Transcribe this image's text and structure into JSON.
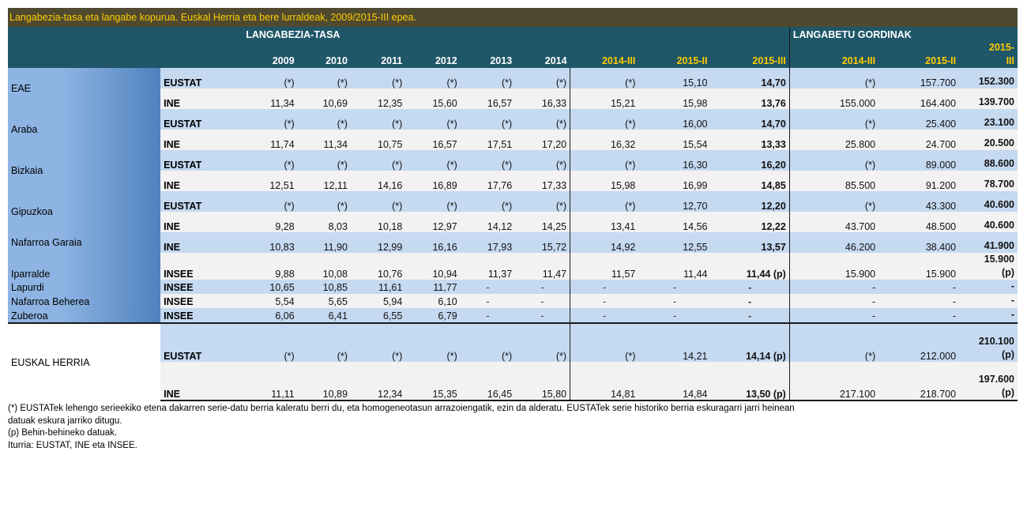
{
  "title": "Langabezia-tasa eta langabe kopurua. Euskal Herria eta bere lurraldeak, 2009/2015-III epea.",
  "header": {
    "group_rate": "LANGABEZIA-TASA",
    "group_unemployed": "LANGABETU GORDINAK",
    "rate_columns": [
      "2009",
      "2010",
      "2011",
      "2012",
      "2013",
      "2014",
      "2014-III",
      "2015-II",
      "2015-III"
    ],
    "unemployed_columns": [
      "2014-III",
      "2015-II",
      "2015-III"
    ]
  },
  "rows": [
    {
      "region": "EAE",
      "source": "EUSTAT",
      "rates": [
        "(*)",
        "(*)",
        "(*)",
        "(*)",
        "(*)",
        "(*)",
        "(*)",
        "15,10",
        "14,70"
      ],
      "unemployed": [
        "(*)",
        "157.700",
        "152.300"
      ]
    },
    {
      "region": "",
      "source": "INE",
      "rates": [
        "11,34",
        "10,69",
        "12,35",
        "15,60",
        "16,57",
        "16,33",
        "15,21",
        "15,98",
        "13,76"
      ],
      "unemployed": [
        "155.000",
        "164.400",
        "139.700"
      ]
    },
    {
      "region": "Araba",
      "source": "EUSTAT",
      "rates": [
        "(*)",
        "(*)",
        "(*)",
        "(*)",
        "(*)",
        "(*)",
        "(*)",
        "16,00",
        "14,70"
      ],
      "unemployed": [
        "(*)",
        "25.400",
        "23.100"
      ]
    },
    {
      "region": "",
      "source": "INE",
      "rates": [
        "11,74",
        "11,34",
        "10,75",
        "16,57",
        "17,51",
        "17,20",
        "16,32",
        "15,54",
        "13,33"
      ],
      "unemployed": [
        "25.800",
        "24.700",
        "20.500"
      ]
    },
    {
      "region": "Bizkaia",
      "source": "EUSTAT",
      "rates": [
        "(*)",
        "(*)",
        "(*)",
        "(*)",
        "(*)",
        "(*)",
        "(*)",
        "16,30",
        "16,20"
      ],
      "unemployed": [
        "(*)",
        "89.000",
        "88.600"
      ]
    },
    {
      "region": "",
      "source": "INE",
      "rates": [
        "12,51",
        "12,11",
        "14,16",
        "16,89",
        "17,76",
        "17,33",
        "15,98",
        "16,99",
        "14,85"
      ],
      "unemployed": [
        "85.500",
        "91.200",
        "78.700"
      ]
    },
    {
      "region": "Gipuzkoa",
      "source": "EUSTAT",
      "rates": [
        "(*)",
        "(*)",
        "(*)",
        "(*)",
        "(*)",
        "(*)",
        "(*)",
        "12,70",
        "12,20"
      ],
      "unemployed": [
        "(*)",
        "43.300",
        "40.600"
      ]
    },
    {
      "region": "",
      "source": "INE",
      "rates": [
        "9,28",
        "8,03",
        "10,18",
        "12,97",
        "14,12",
        "14,25",
        "13,41",
        "14,56",
        "12,22"
      ],
      "unemployed": [
        "43.700",
        "48.500",
        "40.600"
      ]
    },
    {
      "region": "Nafarroa Garaia",
      "source": "INE",
      "rates": [
        "10,83",
        "11,90",
        "12,99",
        "16,16",
        "17,93",
        "15,72",
        "14,92",
        "12,55",
        "13,57"
      ],
      "unemployed": [
        "46.200",
        "38.400",
        "41.900"
      ]
    },
    {
      "region": "Iparralde",
      "source": "INSEE",
      "rates": [
        "9,88",
        "10,08",
        "10,76",
        "10,94",
        "11,37",
        "11,47",
        "11,57",
        "11,44",
        "11,44 (p)"
      ],
      "unemployed": [
        "15.900",
        "15.900",
        "15.900 (p)"
      ]
    },
    {
      "region": "Lapurdi",
      "source": "INSEE",
      "rates": [
        "10,65",
        "10,85",
        "11,61",
        "11,77",
        "-",
        "-",
        "-",
        "-",
        "-"
      ],
      "unemployed": [
        "-",
        "-",
        "-"
      ]
    },
    {
      "region": "Nafarroa Beherea",
      "source": "INSEE",
      "rates": [
        "5,54",
        "5,65",
        "5,94",
        "6,10",
        "-",
        "-",
        "-",
        "-",
        "-"
      ],
      "unemployed": [
        "-",
        "-",
        "-"
      ]
    },
    {
      "region": "Zuberoa",
      "source": "INSEE",
      "rates": [
        "6,06",
        "6,41",
        "6,55",
        "6,79",
        "-",
        "-",
        "-",
        "-",
        "-"
      ],
      "unemployed": [
        "-",
        "-",
        "-"
      ]
    },
    {
      "region": "EUSKAL HERRIA",
      "source": "EUSTAT",
      "rates": [
        "(*)",
        "(*)",
        "(*)",
        "(*)",
        "(*)",
        "(*)",
        "(*)",
        "14,21",
        "14,14 (p)"
      ],
      "unemployed": [
        "(*)",
        "212.000",
        "210.100 (p)"
      ]
    },
    {
      "region": "",
      "source": "INE",
      "rates": [
        "11,11",
        "10,89",
        "12,34",
        "15,35",
        "16,45",
        "15,80",
        "14,81",
        "14,84",
        "13,50 (p)"
      ],
      "unemployed": [
        "217.100",
        "218.700",
        "197.600 (p)"
      ]
    }
  ],
  "notes": [
    "(*) EUSTATek lehengo serieekiko etena dakarren serie-datu berria kaleratu berri du, eta homogeneotasun arrazoiengatik, ezin da alderatu. EUSTATek serie historiko berria eskuragarri jarri heinean",
    "datuak eskura jarriko ditugu.",
    "(p) Behin-behineko datuak.",
    "Iturria: EUSTAT, INE eta INSEE."
  ],
  "colors": {
    "title_bg": "#4f4a2f",
    "title_text": "#ffcc00",
    "header_bg": "#1f5668",
    "header_highlight": "#ffcc00",
    "region_gradient_start": "#8eb4e3",
    "region_gradient_end": "#4f81bd",
    "row_blue": "#c5d9f1",
    "row_grey": "#f2f2f2"
  }
}
